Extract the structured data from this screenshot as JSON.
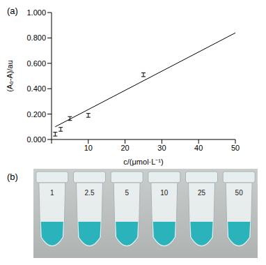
{
  "chart_data": {
    "type": "scatter",
    "panel_label": "(a)",
    "x_label": "c/(μmol·L⁻¹)",
    "y_label": "(A₀-A)/au",
    "xlim": [
      0,
      50
    ],
    "xticks": [
      0,
      10,
      20,
      30,
      40,
      50
    ],
    "ylim": [
      0,
      1
    ],
    "yticks": [
      {
        "value": 0,
        "label": "0.000"
      },
      {
        "value": 0.2,
        "label": "0.200"
      },
      {
        "value": 0.4,
        "label": "0.400"
      },
      {
        "value": 0.6,
        "label": "0.600"
      },
      {
        "value": 0.8,
        "label": "0.800"
      },
      {
        "value": 1,
        "label": "1.000"
      }
    ],
    "grid": false,
    "series": [
      {
        "type": "scatter",
        "color": "#000000",
        "marker": "none",
        "x": [
          1,
          2.5,
          5,
          10,
          25
        ],
        "values": [
          0.042,
          0.08,
          0.165,
          0.19,
          0.51
        ],
        "errors": [
          0.015,
          0.015,
          0.015,
          0.015,
          0.015
        ]
      },
      {
        "type": "line",
        "color": "#000000",
        "line_style": "solid",
        "x": [
          1,
          50
        ],
        "values": [
          0.1,
          0.84
        ]
      }
    ]
  },
  "photo": {
    "panel_label": "(b)",
    "tube_labels": [
      1,
      2.5,
      5,
      10,
      25,
      50
    ]
  }
}
